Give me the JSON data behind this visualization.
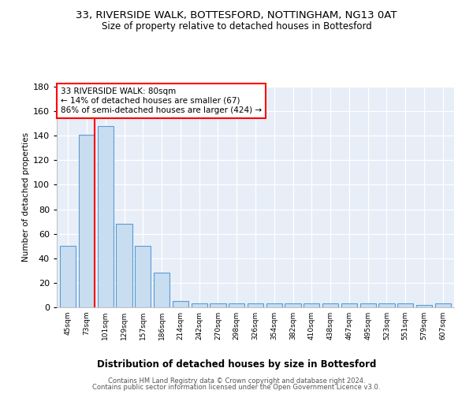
{
  "title": "33, RIVERSIDE WALK, BOTTESFORD, NOTTINGHAM, NG13 0AT",
  "subtitle": "Size of property relative to detached houses in Bottesford",
  "xlabel": "Distribution of detached houses by size in Bottesford",
  "ylabel": "Number of detached properties",
  "bins": [
    "45sqm",
    "73sqm",
    "101sqm",
    "129sqm",
    "157sqm",
    "186sqm",
    "214sqm",
    "242sqm",
    "270sqm",
    "298sqm",
    "326sqm",
    "354sqm",
    "382sqm",
    "410sqm",
    "438sqm",
    "467sqm",
    "495sqm",
    "523sqm",
    "551sqm",
    "579sqm",
    "607sqm"
  ],
  "values": [
    50,
    141,
    148,
    68,
    50,
    28,
    5,
    3,
    3,
    3,
    3,
    3,
    3,
    3,
    3,
    3,
    3,
    3,
    3,
    2,
    3
  ],
  "bar_color": "#c8ddf0",
  "bar_edge_color": "#5b9bd5",
  "red_line_bin_index": 1,
  "annotation_text": "33 RIVERSIDE WALK: 80sqm\n← 14% of detached houses are smaller (67)\n86% of semi-detached houses are larger (424) →",
  "ylim": [
    0,
    180
  ],
  "yticks": [
    0,
    20,
    40,
    60,
    80,
    100,
    120,
    140,
    160,
    180
  ],
  "footer_line1": "Contains HM Land Registry data © Crown copyright and database right 2024.",
  "footer_line2": "Contains public sector information licensed under the Open Government Licence v3.0.",
  "fig_bg": "#ffffff",
  "plot_bg": "#e8eef8"
}
